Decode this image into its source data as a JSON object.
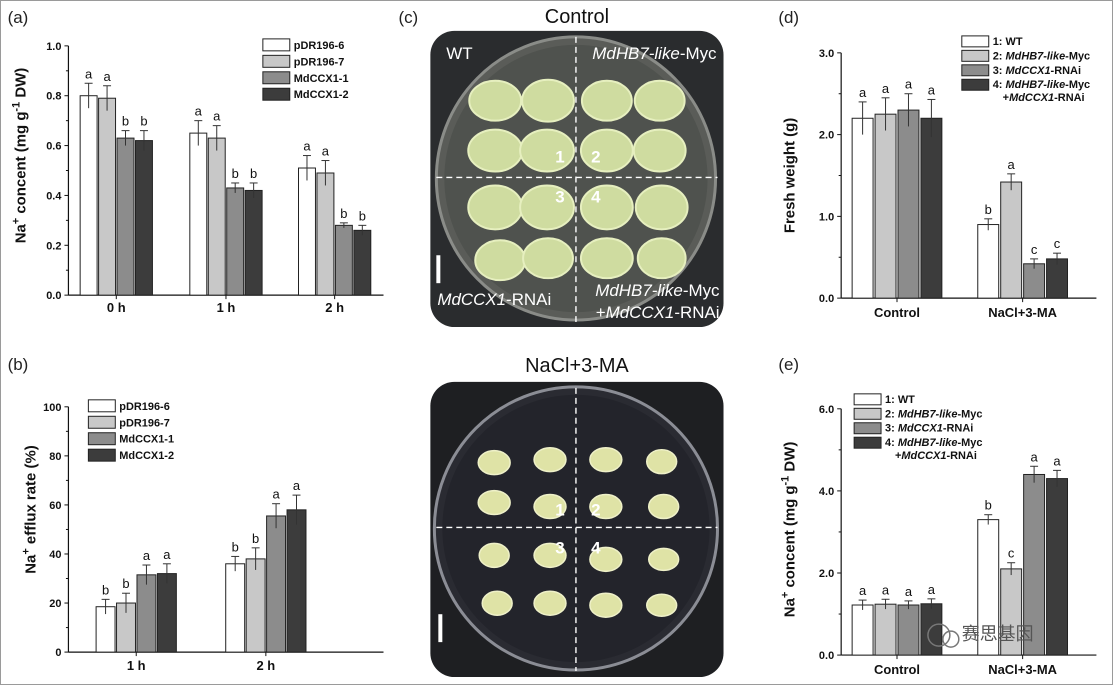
{
  "colors": {
    "c1": "#ffffff",
    "c2": "#c8c8c8",
    "c3": "#8c8c8c",
    "c4": "#3c3c3c"
  },
  "panels": {
    "a": "(a)",
    "b": "(b)",
    "c": "(c)",
    "d": "(d)",
    "e": "(e)"
  },
  "plates": {
    "control": {
      "title": "Control",
      "wt": "WT",
      "hb7": "MdHB7-like",
      "hb7_suffix": "-Myc",
      "ccx": "MdCCX1",
      "ccx_suffix": "-RNAi",
      "combo_line1_it": "MdHB7-like",
      "combo_line1_suf": "-Myc",
      "combo_line2_pre": "+",
      "combo_line2_it": "MdCCX1",
      "combo_line2_suf": "-RNAi",
      "n1": "1",
      "n2": "2",
      "n3": "3",
      "n4": "4"
    },
    "nacl": {
      "title": "NaCl+3-MA",
      "n1": "1",
      "n2": "2",
      "n3": "3",
      "n4": "4"
    }
  },
  "watermark": "赛思基因",
  "chart_data": [
    {
      "id": "a",
      "type": "bar",
      "ylabel_main": "Na",
      "ylabel_sup": "+",
      "ylabel_rest": " concent (mg g",
      "ylabel_sup2": "-1",
      "ylabel_end": " DW)",
      "ylim": [
        0,
        1.0
      ],
      "yticks": [
        "0.0",
        "0.2",
        "0.4",
        "0.6",
        "0.8",
        "1.0"
      ],
      "categories": [
        "0 h",
        "1 h",
        "2 h"
      ],
      "legend": [
        "pDR196-6",
        "pDR196-7",
        "MdCCX1-1",
        "MdCCX1-2"
      ],
      "series": [
        {
          "name": "pDR196-6",
          "values": [
            0.8,
            0.65,
            0.51
          ],
          "err": [
            0.05,
            0.05,
            0.05
          ],
          "sig": [
            "a",
            "a",
            "a"
          ]
        },
        {
          "name": "pDR196-7",
          "values": [
            0.79,
            0.63,
            0.49
          ],
          "err": [
            0.05,
            0.05,
            0.05
          ],
          "sig": [
            "a",
            "a",
            "a"
          ]
        },
        {
          "name": "MdCCX1-1",
          "values": [
            0.63,
            0.43,
            0.28
          ],
          "err": [
            0.03,
            0.02,
            0.01
          ],
          "sig": [
            "b",
            "b",
            "b"
          ]
        },
        {
          "name": "MdCCX1-2",
          "values": [
            0.62,
            0.42,
            0.26
          ],
          "err": [
            0.04,
            0.03,
            0.02
          ],
          "sig": [
            "b",
            "b",
            "b"
          ]
        }
      ]
    },
    {
      "id": "b",
      "type": "bar",
      "ylabel_main": "Na",
      "ylabel_sup": "+",
      "ylabel_rest": " efflux rate (%)",
      "ylim": [
        0,
        100
      ],
      "yticks": [
        "0",
        "20",
        "40",
        "60",
        "80",
        "100"
      ],
      "categories": [
        "1 h",
        "2 h"
      ],
      "legend": [
        "pDR196-6",
        "pDR196-7",
        "MdCCX1-1",
        "MdCCX1-2"
      ],
      "series": [
        {
          "name": "pDR196-6",
          "values": [
            18.5,
            36
          ],
          "err": [
            3,
            3
          ],
          "sig": [
            "b",
            "b"
          ]
        },
        {
          "name": "pDR196-7",
          "values": [
            20,
            38
          ],
          "err": [
            4,
            4.5
          ],
          "sig": [
            "b",
            "b"
          ]
        },
        {
          "name": "MdCCX1-1",
          "values": [
            31.5,
            55.5
          ],
          "err": [
            4,
            5
          ],
          "sig": [
            "a",
            "a"
          ]
        },
        {
          "name": "MdCCX1-2",
          "values": [
            32,
            58
          ],
          "err": [
            4,
            6
          ],
          "sig": [
            "a",
            "a"
          ]
        }
      ]
    },
    {
      "id": "d",
      "type": "bar",
      "ylabel": "Fresh weight (g)",
      "ylim": [
        0,
        3.0
      ],
      "yticks": [
        "0.0",
        "1.0",
        "2.0",
        "3.0"
      ],
      "categories": [
        "Control",
        "NaCl+3-MA"
      ],
      "legend": [
        {
          "num": "1: ",
          "it": "",
          "rest": "WT",
          "line2": ""
        },
        {
          "num": "2: ",
          "it": "MdHB7-like",
          "rest": "-Myc",
          "line2": ""
        },
        {
          "num": "3: ",
          "it": "MdCCX1",
          "rest": "-RNAi",
          "line2": ""
        },
        {
          "num": "4: ",
          "it": "MdHB7-like",
          "rest": "-Myc",
          "line2": "+MdCCX1-RNAi"
        }
      ],
      "series": [
        {
          "name": "1: WT",
          "values": [
            2.2,
            0.9
          ],
          "err": [
            0.2,
            0.07
          ],
          "sig": [
            "a",
            "b"
          ]
        },
        {
          "name": "2: MdHB7-like-Myc",
          "values": [
            2.25,
            1.42
          ],
          "err": [
            0.2,
            0.1
          ],
          "sig": [
            "a",
            "a"
          ]
        },
        {
          "name": "3: MdCCX1-RNAi",
          "values": [
            2.3,
            0.42
          ],
          "err": [
            0.2,
            0.06
          ],
          "sig": [
            "a",
            "c"
          ]
        },
        {
          "name": "4: MdHB7-like-Myc+MdCCX1-RNAi",
          "values": [
            2.2,
            0.48
          ],
          "err": [
            0.23,
            0.07
          ],
          "sig": [
            "a",
            "c"
          ]
        }
      ]
    },
    {
      "id": "e",
      "type": "bar",
      "ylabel_main": "Na",
      "ylabel_sup": "+",
      "ylabel_rest": " concent (mg g",
      "ylabel_sup2": "-1",
      "ylabel_end": " DW)",
      "ylim": [
        0,
        6.0
      ],
      "yticks": [
        "0.0",
        "2.0",
        "4.0",
        "6.0"
      ],
      "categories": [
        "Control",
        "NaCl+3-MA"
      ],
      "legend": [
        {
          "num": "1: ",
          "it": "",
          "rest": "WT",
          "line2": ""
        },
        {
          "num": "2: ",
          "it": "MdHB7-like",
          "rest": "-Myc",
          "line2": ""
        },
        {
          "num": "3: ",
          "it": "MdCCX1",
          "rest": "-RNAi",
          "line2": ""
        },
        {
          "num": "4: ",
          "it": "MdHB7-like",
          "rest": "-Myc",
          "line2": "+MdCCX1-RNAi"
        }
      ],
      "series": [
        {
          "name": "1: WT",
          "values": [
            1.22,
            3.3
          ],
          "err": [
            0.12,
            0.12
          ],
          "sig": [
            "a",
            "b"
          ]
        },
        {
          "name": "2: MdHB7-like-Myc",
          "values": [
            1.24,
            2.1
          ],
          "err": [
            0.12,
            0.15
          ],
          "sig": [
            "a",
            "c"
          ]
        },
        {
          "name": "3: MdCCX1-RNAi",
          "values": [
            1.22,
            4.4
          ],
          "err": [
            0.1,
            0.2
          ],
          "sig": [
            "a",
            "a"
          ]
        },
        {
          "name": "4: MdHB7-like-Myc+MdCCX1-RNAi",
          "values": [
            1.25,
            4.3
          ],
          "err": [
            0.12,
            0.2
          ],
          "sig": [
            "a",
            "a"
          ]
        }
      ]
    }
  ]
}
